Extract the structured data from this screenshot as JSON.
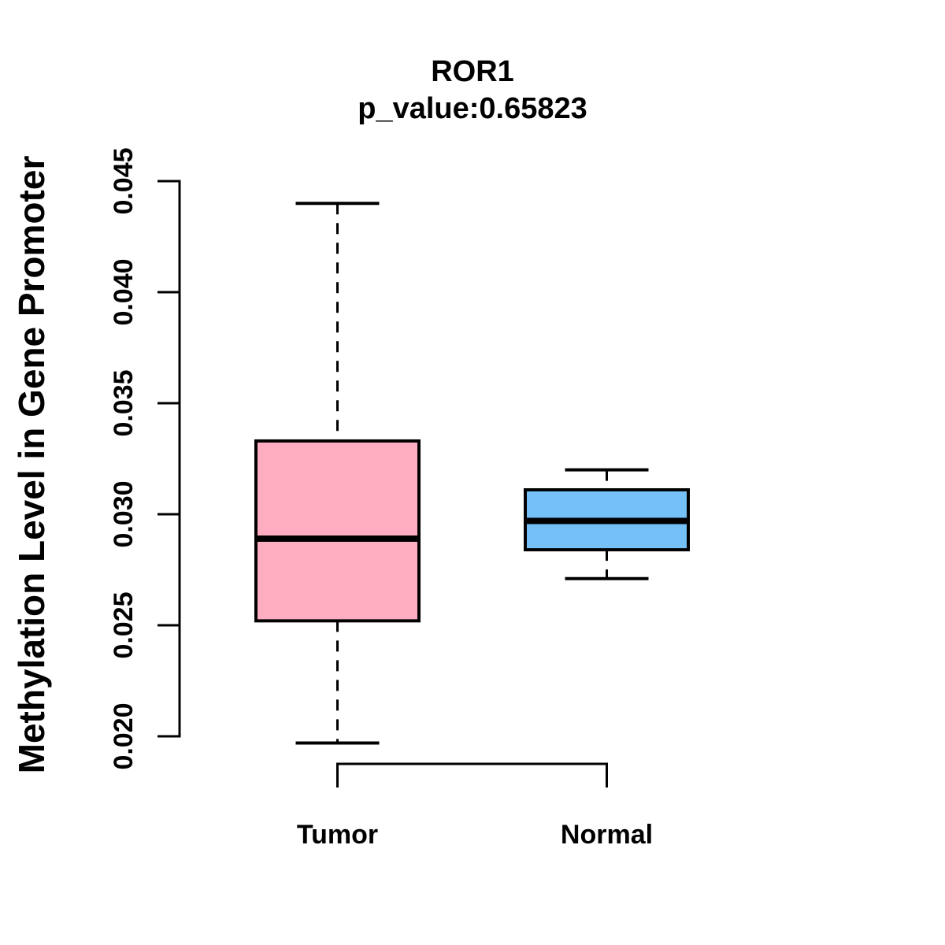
{
  "chart_data": {
    "type": "boxplot",
    "title": "ROR1",
    "subtitle": "p_value:0.65823",
    "gene": "ROR1",
    "p_value": 0.65823,
    "ylabel": "Methylation Level in Gene Promoter",
    "xlabel": "",
    "ylim": [
      0.02,
      0.045
    ],
    "y_ticks": [
      0.045,
      0.04,
      0.035,
      0.03,
      0.025,
      0.02
    ],
    "y_tick_labels": [
      "0.045",
      "0.040",
      "0.035",
      "0.030",
      "0.025",
      "0.020"
    ],
    "grid": false,
    "legend": "none",
    "categories": [
      "Tumor",
      "Normal"
    ],
    "series": [
      {
        "name": "Tumor",
        "fill_color": "#FFAEC1",
        "whisker_low": 0.0197,
        "q1": 0.0252,
        "median": 0.0289,
        "q3": 0.0333,
        "whisker_high": 0.044,
        "whisker_style": "dashed"
      },
      {
        "name": "Normal",
        "fill_color": "#74C0F7",
        "whisker_low": 0.0271,
        "q1": 0.0284,
        "median": 0.0297,
        "q3": 0.0311,
        "whisker_high": 0.032,
        "whisker_style": "dashed"
      }
    ],
    "colors": {
      "axis": "#000000",
      "box_border": "#000000",
      "median_line": "#000000",
      "text": "#000000",
      "background": "#ffffff"
    }
  }
}
